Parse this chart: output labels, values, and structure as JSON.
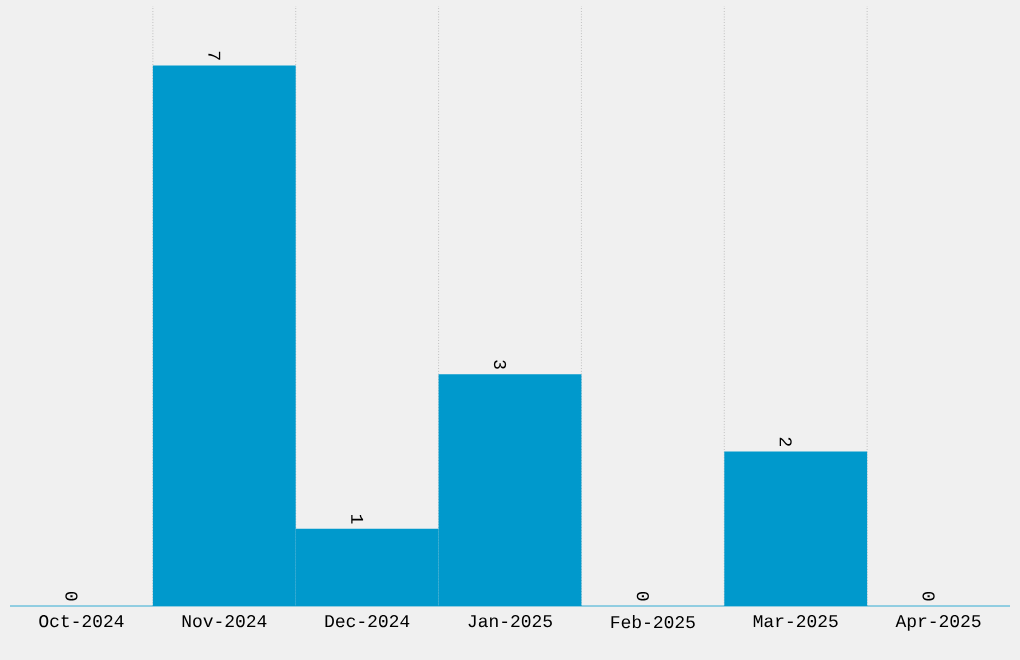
{
  "chart_data": {
    "type": "bar",
    "categories": [
      "Oct-2024",
      "Nov-2024",
      "Dec-2024",
      "Jan-2025",
      "Feb-2025",
      "Mar-2025",
      "Apr-2025"
    ],
    "values": [
      0,
      7,
      1,
      3,
      0,
      2,
      0
    ],
    "color": "#0099cc",
    "grid": "x",
    "data_labels": true,
    "tick_labels": "x"
  }
}
